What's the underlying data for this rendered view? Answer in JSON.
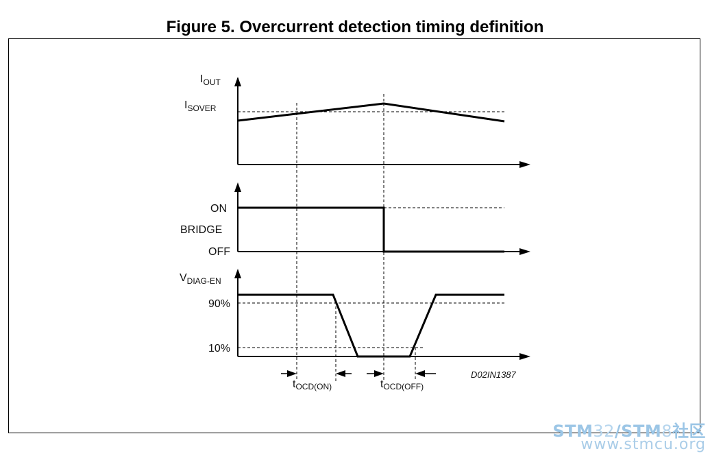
{
  "title": "Figure 5. Overcurrent detection timing definition",
  "labels": {
    "iout_main": "I",
    "iout_sub": "OUT",
    "isover_main": "I",
    "isover_sub": "SOVER",
    "on": "ON",
    "bridge": "BRIDGE",
    "off": "OFF",
    "vdiag_main": "V",
    "vdiag_sub": "DIAG-EN",
    "p90": "90%",
    "p10": "10%",
    "tocd_on_main": "t",
    "tocd_on_sub": "OCD(ON)",
    "tocd_off_main": "t",
    "tocd_off_sub": "OCD(OFF)",
    "ref": "D02IN1387"
  },
  "watermark": {
    "line1_a": "STM",
    "line1_b": "32",
    "line1_c": "/STM",
    "line1_d": "8",
    "line1_e": "社区",
    "line2": "www.stmcu.org"
  }
}
